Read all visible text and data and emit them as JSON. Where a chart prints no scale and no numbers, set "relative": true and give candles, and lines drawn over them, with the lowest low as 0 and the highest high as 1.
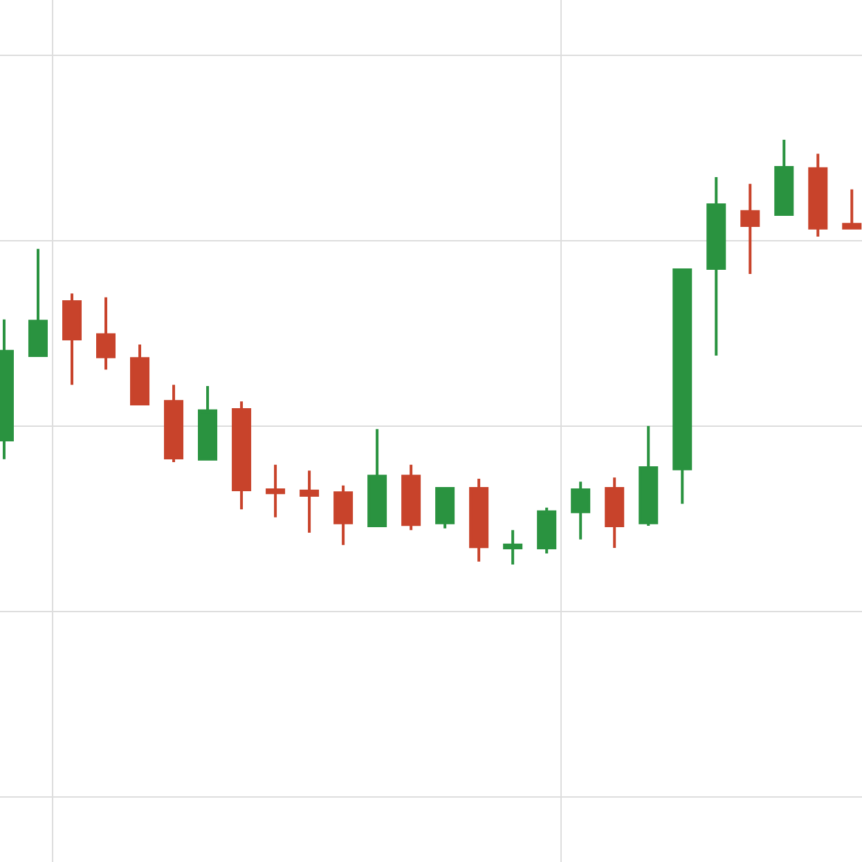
{
  "chart_data": {
    "type": "candlestick",
    "relative": true,
    "grid": true,
    "tick_labels": false,
    "categories": [
      null,
      null,
      null,
      null,
      null,
      null,
      null,
      null,
      null,
      null,
      null,
      null,
      null,
      null,
      null,
      null,
      null,
      null,
      null,
      null,
      null,
      null,
      null,
      null,
      null,
      null
    ],
    "ohlc": [
      [
        0.293,
        0.577,
        0.248,
        0.502
      ],
      [
        0.492,
        0.743,
        0.492,
        0.573
      ],
      [
        0.619,
        0.638,
        0.423,
        0.531
      ],
      [
        0.541,
        0.629,
        0.459,
        0.489
      ],
      [
        0.485,
        0.518,
        0.378,
        0.378
      ],
      [
        0.384,
        0.423,
        0.241,
        0.251
      ],
      [
        0.248,
        0.42,
        0.248,
        0.362
      ],
      [
        0.365,
        0.384,
        0.13,
        0.176
      ],
      [
        0.176,
        0.235,
        0.111,
        0.169
      ],
      [
        0.173,
        0.221,
        0.075,
        0.163
      ],
      [
        0.169,
        0.186,
        0.046,
        0.098
      ],
      [
        0.091,
        0.319,
        0.091,
        0.208
      ],
      [
        0.208,
        0.235,
        0.081,
        0.094
      ],
      [
        0.098,
        0.179,
        0.085,
        0.179
      ],
      [
        0.179,
        0.202,
        0.007,
        0.042
      ],
      [
        0.039,
        0.081,
        0.0,
        0.046
      ],
      [
        0.039,
        0.134,
        0.026,
        0.124
      ],
      [
        0.124,
        0.195,
        0.059,
        0.176
      ],
      [
        0.179,
        0.205,
        0.039,
        0.091
      ],
      [
        0.098,
        0.326,
        0.091,
        0.228
      ],
      [
        0.225,
        0.694,
        0.143,
        0.694
      ],
      [
        0.697,
        0.912,
        0.492,
        0.847
      ],
      [
        0.831,
        0.896,
        0.684,
        0.798
      ],
      [
        0.824,
        1.0,
        0.824,
        0.935
      ],
      [
        0.932,
        0.967,
        0.772,
        0.792
      ],
      [
        0.801,
        0.883,
        0.792,
        0.792
      ]
    ],
    "colors": [
      "#2a9340",
      "#2a9340",
      "#c8432b",
      "#c8432b",
      "#c8432b",
      "#c8432b",
      "#2a9340",
      "#c8432b",
      "#c8432b",
      "#c8432b",
      "#c8432b",
      "#2a9340",
      "#c8432b",
      "#2a9340",
      "#c8432b",
      "#2a9340",
      "#2a9340",
      "#2a9340",
      "#c8432b",
      "#2a9340",
      "#2a9340",
      "#2a9340",
      "#c8432b",
      "#2a9340",
      "#c8432b",
      "#c8432b"
    ]
  }
}
